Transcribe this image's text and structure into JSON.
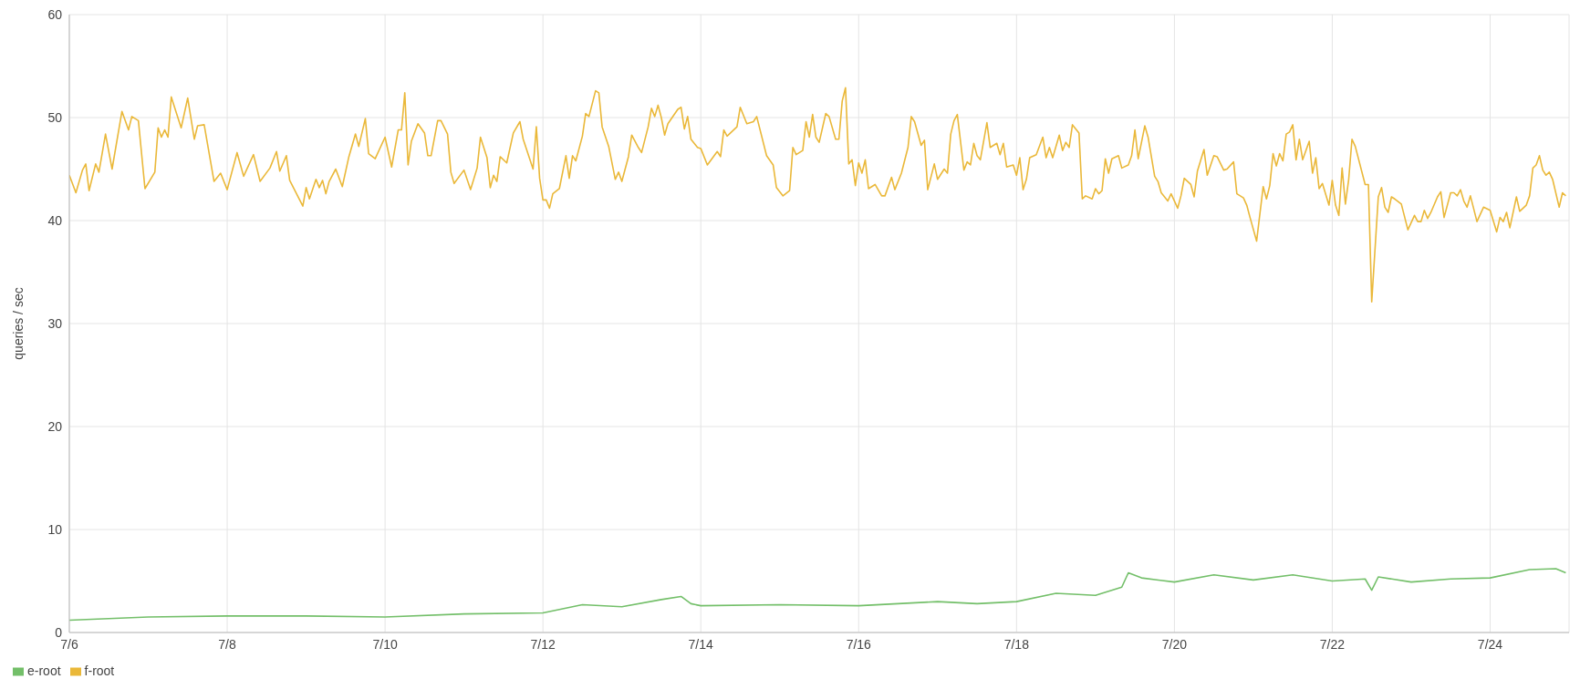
{
  "chart_data": {
    "type": "line",
    "ylabel": "queries / sec",
    "xlim": [
      "--07-06",
      "--07-25"
    ],
    "xticks": [
      {
        "value": "--07-06",
        "label": "7/6"
      },
      {
        "value": "--07-08",
        "label": "7/8"
      },
      {
        "value": "--07-10",
        "label": "7/10"
      },
      {
        "value": "--07-12",
        "label": "7/12"
      },
      {
        "value": "--07-14",
        "label": "7/14"
      },
      {
        "value": "--07-16",
        "label": "7/16"
      },
      {
        "value": "--07-18",
        "label": "7/18"
      },
      {
        "value": "--07-20",
        "label": "7/20"
      },
      {
        "value": "--07-22",
        "label": "7/22"
      },
      {
        "value": "--07-24",
        "label": "7/24"
      }
    ],
    "ylim": [
      0,
      60
    ],
    "yticks": [
      0,
      10,
      20,
      30,
      40,
      50,
      60
    ],
    "grid": true,
    "legend": "bottom left",
    "marker": "none",
    "line_style": "solid",
    "series": [
      {
        "name": "e-root",
        "color": "#73bf69",
        "x": [
          "--07-06T00:00",
          "--07-07T00:00",
          "--07-08T00:00",
          "--07-09T00:00",
          "--07-10T00:00",
          "--07-11T00:00",
          "--07-12T00:00",
          "--07-12T12:00",
          "--07-13T00:00",
          "--07-13T12:00",
          "--07-13T18:00",
          "--07-13T21:00",
          "--07-14T00:00",
          "--07-15T00:00",
          "--07-16T00:00",
          "--07-17T00:00",
          "--07-17T12:00",
          "--07-18T00:00",
          "--07-18T12:00",
          "--07-19T00:00",
          "--07-19T08:00",
          "--07-19T10:00",
          "--07-19T14:00",
          "--07-20T00:00",
          "--07-20T12:00",
          "--07-21T00:00",
          "--07-21T12:00",
          "--07-22T00:00",
          "--07-22T10:00",
          "--07-22T12:00",
          "--07-22T14:00",
          "--07-23T00:00",
          "--07-23T12:00",
          "--07-24T00:00",
          "--07-24T12:00",
          "--07-24T20:00",
          "--07-24T23:00"
        ],
        "values": [
          1.2,
          1.5,
          1.6,
          1.6,
          1.5,
          1.8,
          1.9,
          2.7,
          2.5,
          3.2,
          3.5,
          2.8,
          2.6,
          2.7,
          2.6,
          3.0,
          2.8,
          3.0,
          3.8,
          3.6,
          4.4,
          5.8,
          5.3,
          4.9,
          5.6,
          5.1,
          5.6,
          5.0,
          5.2,
          4.1,
          5.4,
          4.9,
          5.2,
          5.3,
          6.1,
          6.2,
          5.8
        ]
      },
      {
        "name": "f-root",
        "color": "#eab839",
        "x": [
          "--07-06T00:00",
          "--07-06T02:00",
          "--07-06T04:00",
          "--07-06T05:00",
          "--07-06T06:00",
          "--07-06T08:00",
          "--07-06T09:00",
          "--07-06T11:00",
          "--07-06T13:00",
          "--07-06T16:00",
          "--07-06T18:00",
          "--07-06T19:00",
          "--07-06T21:00",
          "--07-06T23:00",
          "--07-07T02:00",
          "--07-07T03:00",
          "--07-07T04:00",
          "--07-07T05:00",
          "--07-07T06:00",
          "--07-07T07:00",
          "--07-07T10:00",
          "--07-07T12:00",
          "--07-07T14:00",
          "--07-07T15:00",
          "--07-07T17:00",
          "--07-07T20:00",
          "--07-07T22:00",
          "--07-08T00:00",
          "--07-08T03:00",
          "--07-08T05:00",
          "--07-08T08:00",
          "--07-08T10:00",
          "--07-08T13:00",
          "--07-08T15:00",
          "--07-08T16:00",
          "--07-08T18:00",
          "--07-08T19:00",
          "--07-08T23:00",
          "--07-09T00:00",
          "--07-09T01:00",
          "--07-09T03:00",
          "--07-09T04:00",
          "--07-09T05:00",
          "--07-09T06:00",
          "--07-09T07:00",
          "--07-09T09:00",
          "--07-09T11:00",
          "--07-09T13:00",
          "--07-09T15:00",
          "--07-09T16:00",
          "--07-09T18:00",
          "--07-09T19:00",
          "--07-09T21:00",
          "--07-10T00:00",
          "--07-10T02:00",
          "--07-10T04:00",
          "--07-10T05:00",
          "--07-10T06:00",
          "--07-10T07:00",
          "--07-10T08:00",
          "--07-10T10:00",
          "--07-10T12:00",
          "--07-10T13:00",
          "--07-10T14:00",
          "--07-10T16:00",
          "--07-10T17:00",
          "--07-10T19:00",
          "--07-10T20:00",
          "--07-10T21:00",
          "--07-11T00:00",
          "--07-11T02:00",
          "--07-11T04:00",
          "--07-11T05:00",
          "--07-11T07:00",
          "--07-11T08:00",
          "--07-11T09:00",
          "--07-11T10:00",
          "--07-11T11:00",
          "--07-11T13:00",
          "--07-11T15:00",
          "--07-11T17:00",
          "--07-11T18:00",
          "--07-11T21:00",
          "--07-11T22:00",
          "--07-11T23:00",
          "--07-12T00:00",
          "--07-12T01:00",
          "--07-12T02:00",
          "--07-12T03:00",
          "--07-12T05:00",
          "--07-12T07:00",
          "--07-12T08:00",
          "--07-12T09:00",
          "--07-12T10:00",
          "--07-12T12:00",
          "--07-12T13:00",
          "--07-12T14:00",
          "--07-12T16:00",
          "--07-12T17:00",
          "--07-12T18:00",
          "--07-12T20:00",
          "--07-12T22:00",
          "--07-12T23:00",
          "--07-13T00:00",
          "--07-13T02:00",
          "--07-13T03:00",
          "--07-13T05:00",
          "--07-13T06:00",
          "--07-13T08:00",
          "--07-13T09:00",
          "--07-13T10:00",
          "--07-13T11:00",
          "--07-13T12:00",
          "--07-13T13:00",
          "--07-13T14:00",
          "--07-13T17:00",
          "--07-13T18:00",
          "--07-13T19:00",
          "--07-13T20:00",
          "--07-13T21:00",
          "--07-13T23:00",
          "--07-14T00:00",
          "--07-14T02:00",
          "--07-14T05:00",
          "--07-14T06:00",
          "--07-14T07:00",
          "--07-14T08:00",
          "--07-14T11:00",
          "--07-14T12:00",
          "--07-14T14:00",
          "--07-14T16:00",
          "--07-14T17:00",
          "--07-14T20:00",
          "--07-14T22:00",
          "--07-14T23:00",
          "--07-15T01:00",
          "--07-15T03:00",
          "--07-15T04:00",
          "--07-15T05:00",
          "--07-15T07:00",
          "--07-15T08:00",
          "--07-15T09:00",
          "--07-15T10:00",
          "--07-15T11:00",
          "--07-15T12:00",
          "--07-15T14:00",
          "--07-15T15:00",
          "--07-15T17:00",
          "--07-15T18:00",
          "--07-15T19:00",
          "--07-15T20:00",
          "--07-15T21:00",
          "--07-15T22:00",
          "--07-15T23:00",
          "--07-16T00:00",
          "--07-16T01:00",
          "--07-16T02:00",
          "--07-16T03:00",
          "--07-16T05:00",
          "--07-16T07:00",
          "--07-16T08:00",
          "--07-16T10:00",
          "--07-16T11:00",
          "--07-16T13:00",
          "--07-16T15:00",
          "--07-16T16:00",
          "--07-16T17:00",
          "--07-16T19:00",
          "--07-16T20:00",
          "--07-16T21:00",
          "--07-16T23:00",
          "--07-17T00:00",
          "--07-17T02:00",
          "--07-17T03:00",
          "--07-17T04:00",
          "--07-17T05:00",
          "--07-17T06:00",
          "--07-17T08:00",
          "--07-17T09:00",
          "--07-17T10:00",
          "--07-17T11:00",
          "--07-17T12:00",
          "--07-17T13:00",
          "--07-17T15:00",
          "--07-17T16:00",
          "--07-17T18:00",
          "--07-17T19:00",
          "--07-17T20:00",
          "--07-17T21:00",
          "--07-17T23:00",
          "--07-18T00:00",
          "--07-18T01:00",
          "--07-18T02:00",
          "--07-18T03:00",
          "--07-18T04:00",
          "--07-18T06:00",
          "--07-18T08:00",
          "--07-18T09:00",
          "--07-18T10:00",
          "--07-18T11:00",
          "--07-18T13:00",
          "--07-18T14:00",
          "--07-18T15:00",
          "--07-18T16:00",
          "--07-18T17:00",
          "--07-18T19:00",
          "--07-18T20:00",
          "--07-18T21:00",
          "--07-18T23:00",
          "--07-19T00:00",
          "--07-19T01:00",
          "--07-19T02:00",
          "--07-19T03:00",
          "--07-19T04:00",
          "--07-19T05:00",
          "--07-19T07:00",
          "--07-19T08:00",
          "--07-19T10:00",
          "--07-19T11:00",
          "--07-19T12:00",
          "--07-19T13:00",
          "--07-19T15:00",
          "--07-19T16:00",
          "--07-19T18:00",
          "--07-19T19:00",
          "--07-19T20:00",
          "--07-19T22:00",
          "--07-19T23:00",
          "--07-20T01:00",
          "--07-20T02:00",
          "--07-20T03:00",
          "--07-20T05:00",
          "--07-20T06:00",
          "--07-20T07:00",
          "--07-20T09:00",
          "--07-20T10:00",
          "--07-20T12:00",
          "--07-20T13:00",
          "--07-20T15:00",
          "--07-20T16:00",
          "--07-20T18:00",
          "--07-20T19:00",
          "--07-20T21:00",
          "--07-20T22:00",
          "--07-20T23:00",
          "--07-21T01:00",
          "--07-21T03:00",
          "--07-21T04:00",
          "--07-21T05:00",
          "--07-21T06:00",
          "--07-21T07:00",
          "--07-21T08:00",
          "--07-21T09:00",
          "--07-21T10:00",
          "--07-21T11:00",
          "--07-21T12:00",
          "--07-21T13:00",
          "--07-21T14:00",
          "--07-21T15:00",
          "--07-21T17:00",
          "--07-21T18:00",
          "--07-21T19:00",
          "--07-21T20:00",
          "--07-21T21:00",
          "--07-21T23:00",
          "--07-22T00:00",
          "--07-22T01:00",
          "--07-22T02:00",
          "--07-22T03:00",
          "--07-22T04:00",
          "--07-22T05:00",
          "--07-22T06:00",
          "--07-22T07:00",
          "--07-22T10:00",
          "--07-22T11:00",
          "--07-22T12:00",
          "--07-22T14:00",
          "--07-22T15:00",
          "--07-22T16:00",
          "--07-22T17:00",
          "--07-22T18:00",
          "--07-22T19:00",
          "--07-22T21:00",
          "--07-22T23:00",
          "--07-23T01:00",
          "--07-23T02:00",
          "--07-23T03:00",
          "--07-23T04:00",
          "--07-23T05:00",
          "--07-23T06:00",
          "--07-23T08:00",
          "--07-23T09:00",
          "--07-23T10:00",
          "--07-23T12:00",
          "--07-23T13:00",
          "--07-23T14:00",
          "--07-23T15:00",
          "--07-23T16:00",
          "--07-23T17:00",
          "--07-23T18:00",
          "--07-23T20:00",
          "--07-23T22:00",
          "--07-24T00:00",
          "--07-24T02:00",
          "--07-24T03:00",
          "--07-24T04:00",
          "--07-24T05:00",
          "--07-24T06:00",
          "--07-24T08:00",
          "--07-24T09:00",
          "--07-24T11:00",
          "--07-24T12:00",
          "--07-24T13:00",
          "--07-24T14:00",
          "--07-24T15:00",
          "--07-24T16:00",
          "--07-24T17:00",
          "--07-24T18:00",
          "--07-24T19:00",
          "--07-24T21:00",
          "--07-24T22:00",
          "--07-24T23:00"
        ],
        "values": [
          44.4,
          42.7,
          44.9,
          45.5,
          42.9,
          45.5,
          44.7,
          48.4,
          45.0,
          50.6,
          48.8,
          50.1,
          49.7,
          43.1,
          44.7,
          49.0,
          48.1,
          48.8,
          48.1,
          52.0,
          49.0,
          51.9,
          47.9,
          49.2,
          49.3,
          43.8,
          44.6,
          43.0,
          46.6,
          44.3,
          46.4,
          43.8,
          45.1,
          46.7,
          44.8,
          46.3,
          43.9,
          41.4,
          43.2,
          42.1,
          44.0,
          43.2,
          43.9,
          42.6,
          43.8,
          45.0,
          43.3,
          46.2,
          48.4,
          47.2,
          49.9,
          46.5,
          46.0,
          48.1,
          45.2,
          48.8,
          48.8,
          52.4,
          45.4,
          47.7,
          49.4,
          48.5,
          46.3,
          46.3,
          49.7,
          49.7,
          48.4,
          44.7,
          43.6,
          44.9,
          43.0,
          45.1,
          48.1,
          46.1,
          43.2,
          44.4,
          43.8,
          46.2,
          45.6,
          48.5,
          49.6,
          47.9,
          45.0,
          49.1,
          44.1,
          42.0,
          42.0,
          41.2,
          42.6,
          43.1,
          46.3,
          44.1,
          46.3,
          45.8,
          48.2,
          50.4,
          50.1,
          52.6,
          52.4,
          49.1,
          47.2,
          44.0,
          44.7,
          43.8,
          46.2,
          48.3,
          47.1,
          46.6,
          49.1,
          50.9,
          50.1,
          51.2,
          50.0,
          48.3,
          49.4,
          50.8,
          51.0,
          48.9,
          50.1,
          47.9,
          47.1,
          47.0,
          45.4,
          46.7,
          46.2,
          48.8,
          48.2,
          49.1,
          51.0,
          49.4,
          49.6,
          50.1,
          46.3,
          45.4,
          43.2,
          42.4,
          42.9,
          47.1,
          46.4,
          46.8,
          49.6,
          48.1,
          50.3,
          48.1,
          47.6,
          50.4,
          50.1,
          47.9,
          47.9,
          51.6,
          52.9,
          45.5,
          45.9,
          43.4,
          45.6,
          44.6,
          45.9,
          43.1,
          43.5,
          42.4,
          42.4,
          44.2,
          43.0,
          44.6,
          47.1,
          50.1,
          49.6,
          47.3,
          47.8,
          43.0,
          45.5,
          44.0,
          45.0,
          44.6,
          48.4,
          49.7,
          50.3,
          44.9,
          45.7,
          45.4,
          47.5,
          46.3,
          45.9,
          49.5,
          47.1,
          47.5,
          46.4,
          47.5,
          45.2,
          45.4,
          44.4,
          46.1,
          43.0,
          44.0,
          46.1,
          46.4,
          48.1,
          46.1,
          47.1,
          46.1,
          48.3,
          46.8,
          47.6,
          47.1,
          49.3,
          48.5,
          42.1,
          42.4,
          42.1,
          43.1,
          42.6,
          42.9,
          46.0,
          44.6,
          46.0,
          46.3,
          45.1,
          45.4,
          46.3,
          48.8,
          46.0,
          49.2,
          48.1,
          44.3,
          43.8,
          42.7,
          41.9,
          42.6,
          41.2,
          42.4,
          44.1,
          43.5,
          42.3,
          44.8,
          46.9,
          44.4,
          46.3,
          46.2,
          44.9,
          45.0,
          45.7,
          42.6,
          42.2,
          41.5,
          40.3,
          38.0,
          43.3,
          42.1,
          43.4,
          46.5,
          45.3,
          46.5,
          45.8,
          48.4,
          48.6,
          49.3,
          45.9,
          47.9,
          45.9,
          47.7,
          44.6,
          46.1,
          43.1,
          43.6,
          41.5,
          43.9,
          41.5,
          40.5,
          45.1,
          41.6,
          44.0,
          47.9,
          47.2,
          43.5,
          43.5,
          32.1,
          42.3,
          43.2,
          41.3,
          40.8,
          42.3,
          42.1,
          41.6,
          39.1,
          40.5,
          39.9,
          39.9,
          41.0,
          40.2,
          40.8,
          42.3,
          42.8,
          40.3,
          42.7,
          42.7,
          42.4,
          43.0,
          41.9,
          41.3,
          42.4,
          39.9,
          41.3,
          41.0,
          38.9,
          40.3,
          39.9,
          40.8,
          39.3,
          42.3,
          40.9,
          41.5,
          42.4,
          45.1,
          45.4,
          46.3,
          44.9,
          44.4,
          44.7,
          44.0,
          41.3,
          42.7,
          42.4
        ]
      }
    ]
  }
}
